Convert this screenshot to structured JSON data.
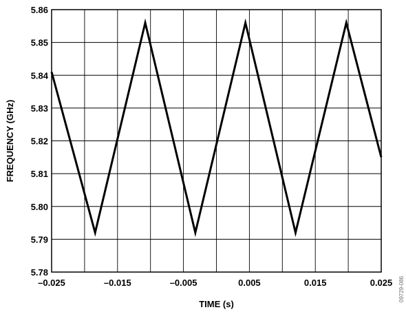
{
  "chart_data": {
    "type": "line",
    "xlabel": "TIME (s)",
    "ylabel": "FREQUENCY (GHz)",
    "xlim": [
      -0.025,
      0.025
    ],
    "ylim": [
      5.78,
      5.86
    ],
    "x_ticks": [
      -0.025,
      -0.02,
      -0.015,
      -0.01,
      -0.005,
      0,
      0.005,
      0.01,
      0.015,
      0.02,
      0.025
    ],
    "x_tick_labels": [
      "–0.025",
      "",
      "–0.015",
      "",
      "–0.005",
      "",
      "0.005",
      "",
      "0.015",
      "",
      "0.025"
    ],
    "y_ticks": [
      5.78,
      5.79,
      5.8,
      5.81,
      5.82,
      5.83,
      5.84,
      5.85,
      5.86
    ],
    "y_tick_labels": [
      "5.78",
      "5.79",
      "5.80",
      "5.81",
      "5.82",
      "5.83",
      "5.84",
      "5.85",
      "5.86"
    ],
    "grid": true,
    "legend": "none",
    "series": [
      {
        "color": "#000000",
        "x": [
          -0.025,
          -0.0184,
          -0.0108,
          -0.0032,
          0.0044,
          0.012,
          0.0197,
          0.025
        ],
        "y": [
          5.841,
          5.792,
          5.856,
          5.792,
          5.856,
          5.792,
          5.856,
          5.815
        ]
      }
    ]
  },
  "figure_id": "09729-086"
}
